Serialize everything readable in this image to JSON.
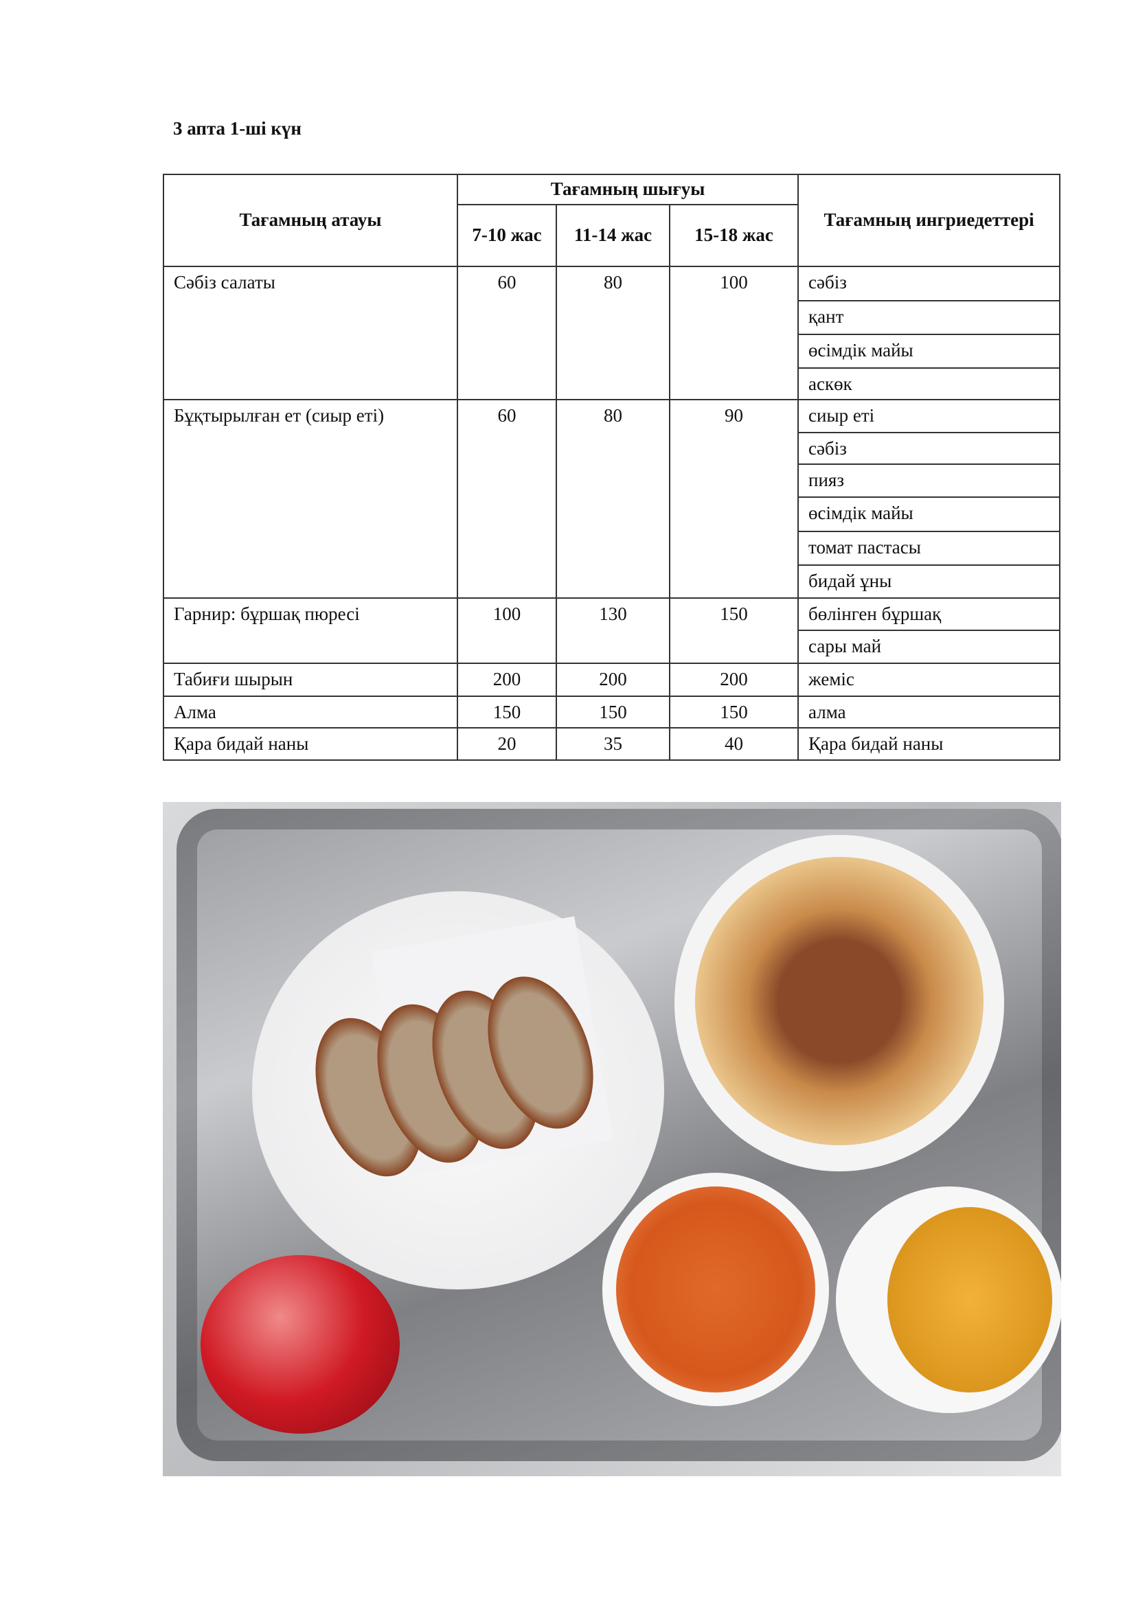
{
  "title": "3 апта 1-ші  күн",
  "table": {
    "headers": {
      "name": "Тағамның атауы",
      "output": "Тағамның шығуы",
      "age1": "7-10 жас",
      "age2": "11-14 жас",
      "age3": "15-18 жас",
      "ingredients": "Тағамның ингриедеттері"
    },
    "rows": [
      {
        "name": "Сәбіз салаты",
        "v1": "60",
        "v2": "80",
        "v3": "100",
        "ingredients": [
          "сәбіз",
          "қант",
          "өсімдік майы",
          "аскөк"
        ]
      },
      {
        "name": "Бұқтырылған ет (сиыр еті)",
        "v1": "60",
        "v2": "80",
        "v3": "90",
        "ingredients": [
          "сиыр еті",
          "сәбіз",
          "пияз",
          "өсімдік майы",
          "томат пастасы",
          "бидай ұны"
        ]
      },
      {
        "name": "Гарнир: бұршақ пюресі",
        "v1": "100",
        "v2": "130",
        "v3": "150",
        "ingredients": [
          "бөлінген бұршақ",
          "сары май"
        ]
      },
      {
        "name": "Табиғи шырын",
        "v1": "200",
        "v2": "200",
        "v3": "200",
        "ingredients": [
          "жеміс"
        ]
      },
      {
        "name": "Алма",
        "v1": "150",
        "v2": "150",
        "v3": "150",
        "ingredients": [
          "алма"
        ]
      },
      {
        "name": "Қара бидай наны",
        "v1": "20",
        "v2": "35",
        "v3": "40",
        "ingredients": [
          "Қара бидай наны"
        ]
      }
    ]
  }
}
